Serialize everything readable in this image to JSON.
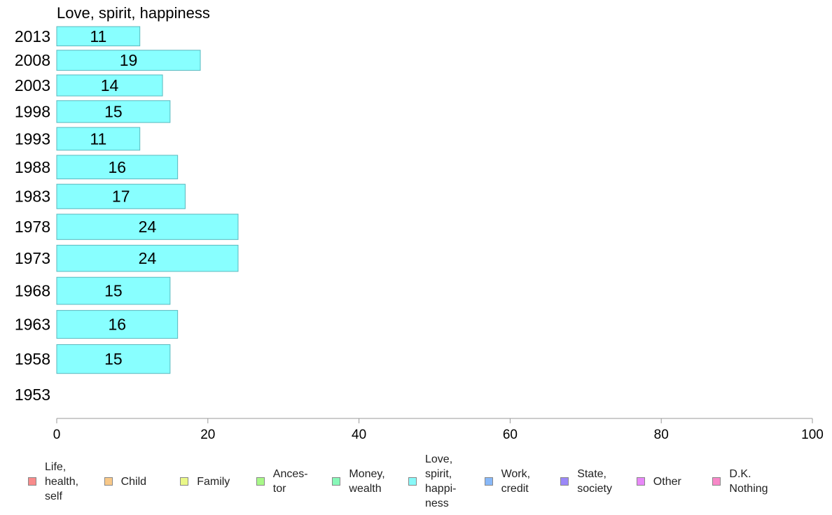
{
  "chart_data": {
    "type": "bar",
    "orientation": "horizontal",
    "title": "Love, spirit, happiness",
    "categories": [
      "2013",
      "2008",
      "2003",
      "1998",
      "1993",
      "1988",
      "1983",
      "1978",
      "1973",
      "1968",
      "1963",
      "1958",
      "1953"
    ],
    "series": [
      {
        "name": "Love, spirit, happiness",
        "values": [
          11,
          19,
          14,
          15,
          11,
          16,
          17,
          24,
          24,
          15,
          16,
          15,
          null
        ]
      }
    ],
    "xlim": [
      0,
      100
    ],
    "xticks": [
      "0",
      "20",
      "40",
      "60",
      "80",
      "100"
    ],
    "grid": false,
    "legend_placement": "bottom",
    "bar_color": "#88FFFF",
    "bar_edge_color": "#5AB8BE"
  },
  "legend": [
    {
      "label": "Life,\nhealth,\nself",
      "color": "#F88B8B"
    },
    {
      "label": "Child",
      "color": "#F8C888"
    },
    {
      "label": "Family",
      "color": "#EAF888"
    },
    {
      "label": "Ances-\ntor",
      "color": "#A8F888"
    },
    {
      "label": "Money,\nwealth",
      "color": "#88F8B8"
    },
    {
      "label": "Love,\nspirit,\nhappi-\nness",
      "color": "#88F8F8"
    },
    {
      "label": "Work,\ncredit",
      "color": "#88B8F8"
    },
    {
      "label": "State,\nsociety",
      "color": "#9B88F8"
    },
    {
      "label": "Other",
      "color": "#E888F8"
    },
    {
      "label": "D.K.\nNothing",
      "color": "#F888C8"
    }
  ]
}
